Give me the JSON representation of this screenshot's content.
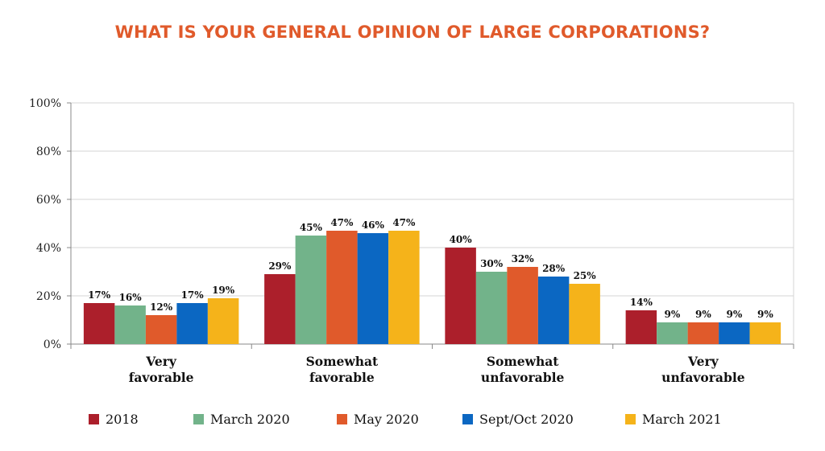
{
  "chart_data": {
    "type": "bar",
    "title": "WHAT IS YOUR GENERAL OPINION OF LARGE CORPORATIONS?",
    "categories": [
      [
        "Very",
        "favorable"
      ],
      [
        "Somewhat",
        "favorable"
      ],
      [
        "Somewhat",
        "unfavorable"
      ],
      [
        "Very",
        "unfavorable"
      ]
    ],
    "series": [
      {
        "name": "2018",
        "color": "#ac1f2b",
        "values": [
          17,
          29,
          40,
          14
        ]
      },
      {
        "name": "March 2020",
        "color": "#72b38a",
        "values": [
          16,
          45,
          30,
          9
        ]
      },
      {
        "name": "May 2020",
        "color": "#e05a2b",
        "values": [
          12,
          47,
          32,
          9
        ]
      },
      {
        "name": "Sept/Oct 2020",
        "color": "#0b67c2",
        "values": [
          17,
          46,
          28,
          9
        ]
      },
      {
        "name": "March 2021",
        "color": "#f5b31a",
        "values": [
          19,
          47,
          25,
          9
        ]
      }
    ],
    "ylim": [
      0,
      100
    ],
    "yticks": [
      0,
      20,
      40,
      60,
      80,
      100
    ],
    "ytick_suffix": "%",
    "value_suffix": "%",
    "grid": true,
    "legend": "bottom"
  }
}
